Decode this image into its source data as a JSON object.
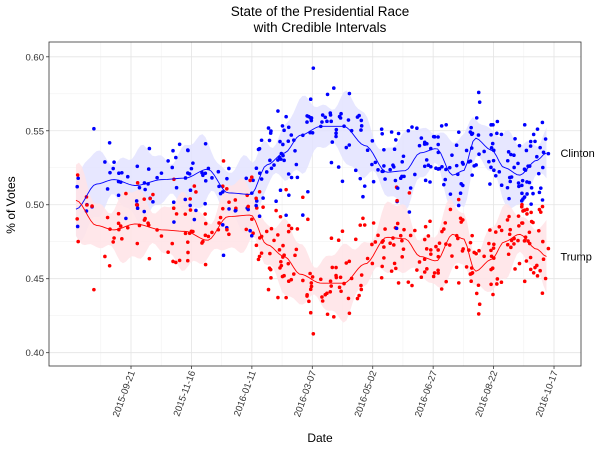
{
  "chart_data": {
    "type": "scatter",
    "title_lines": [
      "State of the Presidential Race",
      "with Credible Intervals"
    ],
    "xlabel": "Date",
    "ylabel": "% of Votes",
    "x_range": [
      "2015-07-07",
      "2016-11-11"
    ],
    "ylim": [
      0.391,
      0.61
    ],
    "y_ticks": [
      0.4,
      0.45,
      0.5,
      0.55,
      0.6
    ],
    "y_tick_labels": [
      "0.40",
      "0.45",
      "0.50",
      "0.55",
      "0.60"
    ],
    "x_ticks": [
      "2015-09-21",
      "2015-11-16",
      "2016-01-11",
      "2016-03-07",
      "2016-05-02",
      "2016-06-27",
      "2016-08-22",
      "2016-10-17"
    ],
    "grid": true,
    "point_style": "dots with smoothed trend line and shaded credible interval",
    "series": [
      {
        "name": "Clinton",
        "label": "Clinton",
        "color": "#0000ff",
        "band_color": "#e3e3ff",
        "trend": [
          {
            "x": "2015-08-01",
            "y": 0.497
          },
          {
            "x": "2015-08-20",
            "y": 0.514
          },
          {
            "x": "2015-09-05",
            "y": 0.517
          },
          {
            "x": "2015-09-25",
            "y": 0.513
          },
          {
            "x": "2015-10-20",
            "y": 0.517
          },
          {
            "x": "2015-11-10",
            "y": 0.518
          },
          {
            "x": "2015-12-01",
            "y": 0.524
          },
          {
            "x": "2015-12-20",
            "y": 0.508
          },
          {
            "x": "2016-01-10",
            "y": 0.507
          },
          {
            "x": "2016-01-25",
            "y": 0.527
          },
          {
            "x": "2016-02-10",
            "y": 0.535
          },
          {
            "x": "2016-02-25",
            "y": 0.547
          },
          {
            "x": "2016-03-15",
            "y": 0.553
          },
          {
            "x": "2016-04-05",
            "y": 0.553
          },
          {
            "x": "2016-04-25",
            "y": 0.54
          },
          {
            "x": "2016-05-15",
            "y": 0.522
          },
          {
            "x": "2016-06-01",
            "y": 0.523
          },
          {
            "x": "2016-06-15",
            "y": 0.535
          },
          {
            "x": "2016-06-30",
            "y": 0.538
          },
          {
            "x": "2016-07-15",
            "y": 0.52
          },
          {
            "x": "2016-07-25",
            "y": 0.523
          },
          {
            "x": "2016-08-05",
            "y": 0.545
          },
          {
            "x": "2016-08-20",
            "y": 0.537
          },
          {
            "x": "2016-09-01",
            "y": 0.525
          },
          {
            "x": "2016-09-15",
            "y": 0.52
          },
          {
            "x": "2016-10-01",
            "y": 0.53
          },
          {
            "x": "2016-10-10",
            "y": 0.535
          }
        ],
        "band_halfwidth": 0.018
      },
      {
        "name": "Trump",
        "label": "Trump",
        "color": "#ff0000",
        "band_color": "#ffe3e6",
        "trend": [
          {
            "x": "2015-08-01",
            "y": 0.503
          },
          {
            "x": "2015-08-20",
            "y": 0.486
          },
          {
            "x": "2015-09-05",
            "y": 0.483
          },
          {
            "x": "2015-09-25",
            "y": 0.487
          },
          {
            "x": "2015-10-20",
            "y": 0.483
          },
          {
            "x": "2015-11-10",
            "y": 0.482
          },
          {
            "x": "2015-12-01",
            "y": 0.476
          },
          {
            "x": "2015-12-20",
            "y": 0.492
          },
          {
            "x": "2016-01-10",
            "y": 0.493
          },
          {
            "x": "2016-01-25",
            "y": 0.473
          },
          {
            "x": "2016-02-10",
            "y": 0.465
          },
          {
            "x": "2016-02-25",
            "y": 0.453
          },
          {
            "x": "2016-03-15",
            "y": 0.447
          },
          {
            "x": "2016-04-05",
            "y": 0.447
          },
          {
            "x": "2016-04-25",
            "y": 0.46
          },
          {
            "x": "2016-05-15",
            "y": 0.478
          },
          {
            "x": "2016-06-01",
            "y": 0.477
          },
          {
            "x": "2016-06-15",
            "y": 0.465
          },
          {
            "x": "2016-06-30",
            "y": 0.462
          },
          {
            "x": "2016-07-15",
            "y": 0.48
          },
          {
            "x": "2016-07-25",
            "y": 0.477
          },
          {
            "x": "2016-08-05",
            "y": 0.455
          },
          {
            "x": "2016-08-20",
            "y": 0.463
          },
          {
            "x": "2016-09-01",
            "y": 0.475
          },
          {
            "x": "2016-09-15",
            "y": 0.48
          },
          {
            "x": "2016-10-01",
            "y": 0.47
          },
          {
            "x": "2016-10-10",
            "y": 0.465
          }
        ],
        "band_halfwidth": 0.018
      }
    ],
    "poll_points": {
      "count_approx": 330,
      "note": "each poll plotted as a Clinton (blue) dot and a mirrored Trump (red) dot, scattered around the trend lines"
    }
  }
}
